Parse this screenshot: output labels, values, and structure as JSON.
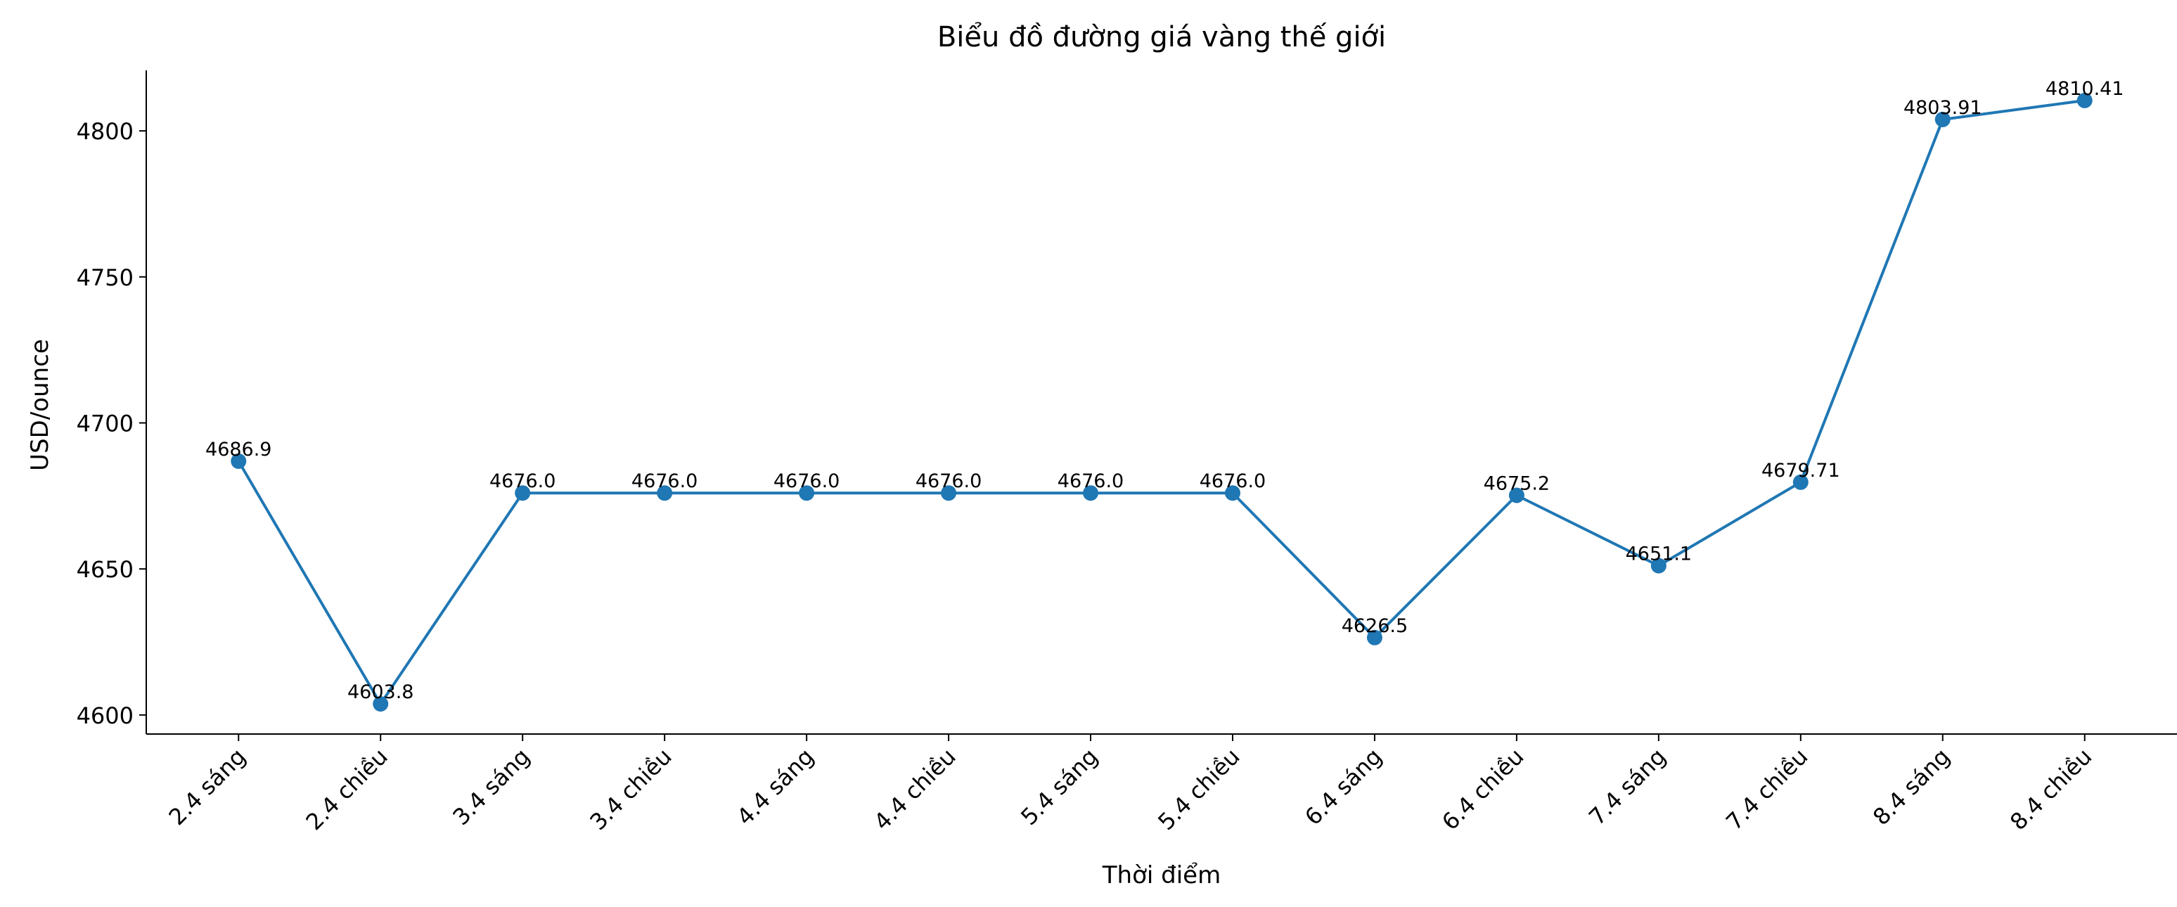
{
  "chart_data": {
    "type": "line",
    "title": "Biểu đồ đường giá vàng thế giới",
    "xlabel": "Thời điểm",
    "ylabel": "USD/ounce",
    "categories": [
      "2.4 sáng",
      "2.4 chiều",
      "3.4 sáng",
      "3.4 chiều",
      "4.4 sáng",
      "4.4 chiều",
      "5.4 sáng",
      "5.4 chiều",
      "6.4 sáng",
      "6.4 chiều",
      "7.4 sáng",
      "7.4 chiều",
      "8.4 sáng",
      "8.4 chiều"
    ],
    "series": [
      {
        "name": "USD/ounce",
        "color": "#1f77b4",
        "values": [
          4686.9,
          4603.8,
          4676.0,
          4676.0,
          4676.0,
          4676.0,
          4676.0,
          4676.0,
          4626.5,
          4675.2,
          4651.1,
          4679.71,
          4803.91,
          4810.41
        ],
        "value_labels": [
          "4686.9",
          "4603.8",
          "4676.0",
          "4676.0",
          "4676.0",
          "4676.0",
          "4676.0",
          "4676.0",
          "4626.5",
          "4675.2",
          "4651.1",
          "4679.71",
          "4803.91",
          "4810.41"
        ]
      }
    ],
    "ylim": [
      4593.47,
      4820.74
    ],
    "yticks": [
      4600,
      4650,
      4700,
      4750,
      4800
    ],
    "grid": false
  }
}
